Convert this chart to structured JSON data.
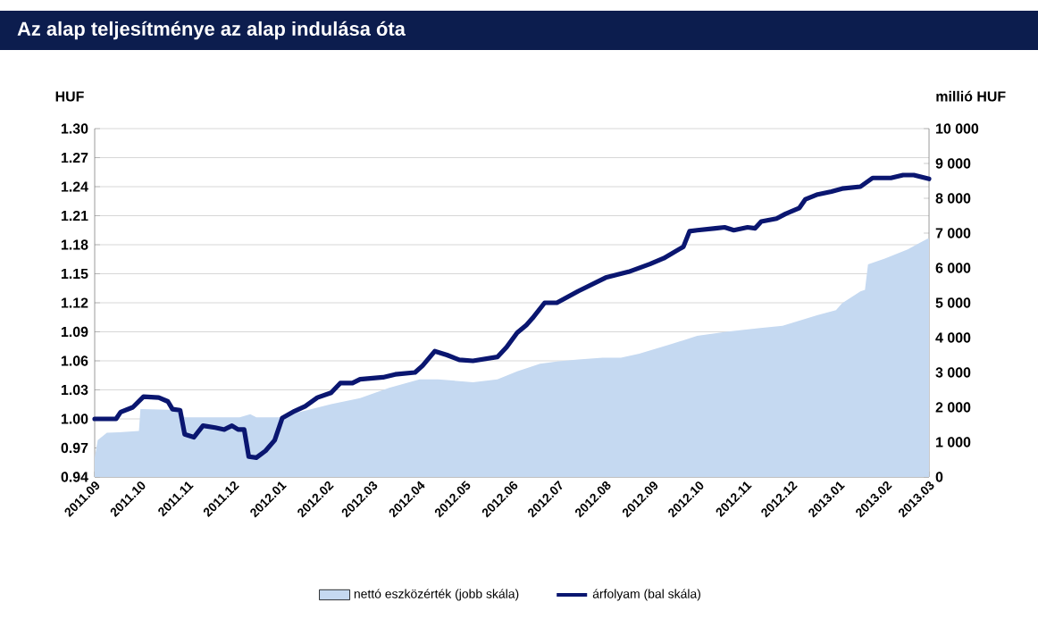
{
  "chart_data": {
    "type": "line",
    "title": "Az alap teljesítménye az alap indulása óta",
    "ylabel": "HUF",
    "y2label": "millió HUF",
    "xlim": [
      "2011-09-01",
      "2013-03-01"
    ],
    "xticks": [
      {
        "value": "2011-09-01",
        "label": "2011.09"
      },
      {
        "value": "2011-10-01",
        "label": "2011.10"
      },
      {
        "value": "2011-11-01",
        "label": "2011.11"
      },
      {
        "value": "2011-12-01",
        "label": "2011.12"
      },
      {
        "value": "2012-01-01",
        "label": "2012.01"
      },
      {
        "value": "2012-02-01",
        "label": "2012.02"
      },
      {
        "value": "2012-03-01",
        "label": "2012.03"
      },
      {
        "value": "2012-04-01",
        "label": "2012.04"
      },
      {
        "value": "2012-05-01",
        "label": "2012.05"
      },
      {
        "value": "2012-06-01",
        "label": "2012.06"
      },
      {
        "value": "2012-07-01",
        "label": "2012.07"
      },
      {
        "value": "2012-08-01",
        "label": "2012.08"
      },
      {
        "value": "2012-09-01",
        "label": "2012.09"
      },
      {
        "value": "2012-10-01",
        "label": "2012.10"
      },
      {
        "value": "2012-11-01",
        "label": "2012.11"
      },
      {
        "value": "2012-12-01",
        "label": "2012.12"
      },
      {
        "value": "2013-01-01",
        "label": "2013.01"
      },
      {
        "value": "2013-02-01",
        "label": "2013.02"
      },
      {
        "value": "2013-03-01",
        "label": "2013.03"
      }
    ],
    "ylim": [
      0.94,
      1.3
    ],
    "yticks": [
      {
        "value": 0.94,
        "label": "0.94"
      },
      {
        "value": 0.97,
        "label": "0.97"
      },
      {
        "value": 1.0,
        "label": "1.00"
      },
      {
        "value": 1.03,
        "label": "1.03"
      },
      {
        "value": 1.06,
        "label": "1.06"
      },
      {
        "value": 1.09,
        "label": "1.09"
      },
      {
        "value": 1.12,
        "label": "1.12"
      },
      {
        "value": 1.15,
        "label": "1.15"
      },
      {
        "value": 1.18,
        "label": "1.18"
      },
      {
        "value": 1.21,
        "label": "1.21"
      },
      {
        "value": 1.24,
        "label": "1.24"
      },
      {
        "value": 1.27,
        "label": "1.27"
      },
      {
        "value": 1.3,
        "label": "1.30"
      }
    ],
    "y2lim": [
      0,
      10000
    ],
    "y2ticks": [
      0,
      {
        "value": 1000,
        "label": "1 000"
      },
      {
        "value": 2000,
        "label": "2 000"
      },
      {
        "value": 3000,
        "label": "3 000"
      },
      {
        "value": 4000,
        "label": "4 000"
      },
      {
        "value": 5000,
        "label": "5 000"
      },
      {
        "value": 6000,
        "label": "6 000"
      },
      {
        "value": 7000,
        "label": "7 000"
      },
      {
        "value": 8000,
        "label": "8 000"
      },
      {
        "value": 9000,
        "label": "9 000"
      },
      {
        "value": 10000,
        "label": "10 000"
      }
    ],
    "grid": "y",
    "legend": "bottom",
    "series": [
      {
        "name": "nettó eszközérték (jobb skála)",
        "type": "area",
        "axis": "y2",
        "color": "#c5d9f1",
        "x": [
          "2011-09-01",
          "2011-09-03",
          "2011-09-09",
          "2011-09-17",
          "2011-09-30",
          "2011-10-01",
          "2011-10-26",
          "2011-10-30",
          "2011-12-05",
          "2011-12-12",
          "2011-12-16",
          "2012-01-01",
          "2012-01-13",
          "2012-02-03",
          "2012-02-22",
          "2012-03-12",
          "2012-04-01",
          "2012-04-13",
          "2012-05-06",
          "2012-05-22",
          "2012-06-04",
          "2012-06-19",
          "2012-07-01",
          "2012-07-14",
          "2012-07-30",
          "2012-08-11",
          "2012-08-23",
          "2012-09-12",
          "2012-09-30",
          "2012-10-20",
          "2012-11-09",
          "2012-11-25",
          "2012-12-18",
          "2012-12-30",
          "2013-01-03",
          "2013-01-15",
          "2013-01-18",
          "2013-01-20",
          "2013-01-31",
          "2013-02-15",
          "2013-02-22",
          "2013-02-28",
          "2013-03-01"
        ],
        "values": [
          550,
          1060,
          1270,
          1280,
          1320,
          1950,
          1920,
          1710,
          1710,
          1800,
          1710,
          1710,
          1860,
          2090,
          2260,
          2560,
          2800,
          2800,
          2720,
          2800,
          3030,
          3250,
          3320,
          3370,
          3420,
          3420,
          3540,
          3800,
          4050,
          4170,
          4270,
          4340,
          4650,
          4790,
          4990,
          5330,
          5370,
          6100,
          6270,
          6530,
          6700,
          6840,
          6840
        ]
      },
      {
        "name": "árfolyam (bal skála)",
        "color": "#0a1670",
        "x": [
          "2011-09-01",
          "2011-09-15",
          "2011-09-18",
          "2011-09-26",
          "2011-10-03",
          "2011-10-13",
          "2011-10-19",
          "2011-10-22",
          "2011-10-27",
          "2011-10-30",
          "2011-11-05",
          "2011-11-11",
          "2011-11-19",
          "2011-11-25",
          "2011-11-30",
          "2011-12-04",
          "2011-12-08",
          "2011-12-11",
          "2011-12-16",
          "2011-12-22",
          "2011-12-28",
          "2012-01-02",
          "2012-01-10",
          "2012-01-17",
          "2012-01-25",
          "2012-02-03",
          "2012-02-09",
          "2012-02-17",
          "2012-02-22",
          "2012-03-08",
          "2012-03-16",
          "2012-03-29",
          "2012-04-03",
          "2012-04-11",
          "2012-04-19",
          "2012-04-27",
          "2012-05-06",
          "2012-05-22",
          "2012-05-28",
          "2012-06-04",
          "2012-06-10",
          "2012-06-14",
          "2012-06-22",
          "2012-06-30",
          "2012-07-14",
          "2012-08-01",
          "2012-08-16",
          "2012-08-30",
          "2012-09-08",
          "2012-09-21",
          "2012-09-25",
          "2012-09-30",
          "2012-10-12",
          "2012-10-18",
          "2012-10-24",
          "2012-11-02",
          "2012-11-07",
          "2012-11-11",
          "2012-11-21",
          "2012-11-27",
          "2012-12-06",
          "2012-12-10",
          "2012-12-18",
          "2012-12-27",
          "2013-01-03",
          "2013-01-15",
          "2013-01-23",
          "2013-02-04",
          "2013-02-12",
          "2013-02-19",
          "2013-03-01"
        ],
        "values": [
          1.0,
          1.0,
          1.007,
          1.012,
          1.023,
          1.022,
          1.018,
          1.01,
          1.009,
          0.984,
          0.981,
          0.993,
          0.991,
          0.989,
          0.993,
          0.989,
          0.989,
          0.961,
          0.96,
          0.967,
          0.978,
          1.001,
          1.008,
          1.013,
          1.022,
          1.027,
          1.037,
          1.037,
          1.041,
          1.043,
          1.046,
          1.048,
          1.055,
          1.07,
          1.066,
          1.061,
          1.06,
          1.064,
          1.074,
          1.089,
          1.097,
          1.104,
          1.12,
          1.12,
          1.132,
          1.146,
          1.152,
          1.16,
          1.166,
          1.178,
          1.194,
          1.195,
          1.197,
          1.198,
          1.195,
          1.198,
          1.197,
          1.204,
          1.207,
          1.212,
          1.218,
          1.227,
          1.232,
          1.235,
          1.238,
          1.24,
          1.249,
          1.249,
          1.252,
          1.252,
          1.248
        ]
      }
    ]
  }
}
